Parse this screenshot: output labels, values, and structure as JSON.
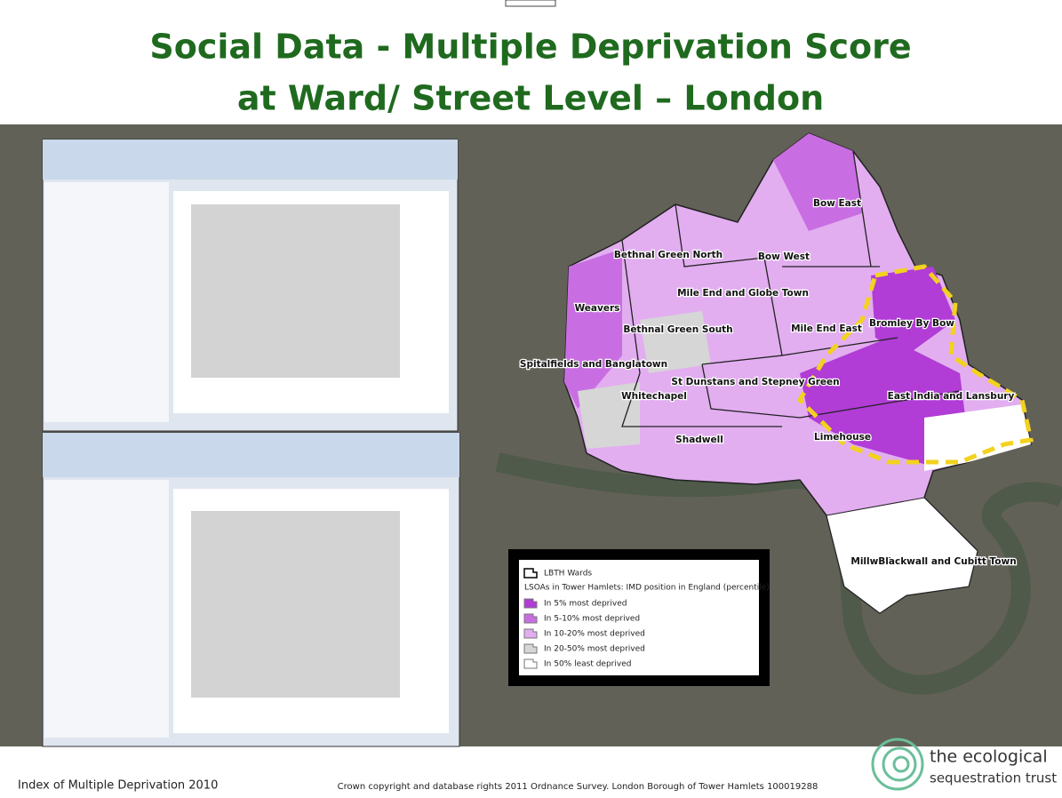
{
  "header": {
    "title_line1": "Social Data - Multiple Deprivation Score",
    "title_line2": "at Ward/ Street Level – London"
  },
  "map": {
    "wards": [
      "Bow East",
      "Bethnal Green North",
      "Bow West",
      "Mile End and Globe Town",
      "Weavers",
      "Bethnal Green South",
      "Mile End East",
      "Bromley By Bow",
      "Spitalfields and Banglatown",
      "St Dunstans and Stepney Green",
      "Whitechapel",
      "East India and Lansbury",
      "Shadwell",
      "Limehouse",
      "Millwall",
      "Blackwall and Cubitt Town"
    ],
    "legend": {
      "wards_label": "LBTH Wards",
      "title": "LSOAs in Tower Hamlets: IMD position in England (percentile)",
      "items": [
        {
          "label": "In 5% most deprived",
          "color": "#b13cd6"
        },
        {
          "label": "In 5-10% most deprived",
          "color": "#c96ee2"
        },
        {
          "label": "In 10-20% most deprived",
          "color": "#e2aef0"
        },
        {
          "label": "In 20-50% most deprived",
          "color": "#d6d6d6"
        },
        {
          "label": "In 50% least deprived",
          "color": "#ffffff"
        }
      ]
    }
  },
  "footer": {
    "left": "Index of Multiple Deprivation 2010",
    "center": "Crown copyright and database rights 2011 Ordnance Survey. London Borough of Tower Hamlets 100019288",
    "logo_line1": "the ecological",
    "logo_line2": "sequestration trust"
  }
}
